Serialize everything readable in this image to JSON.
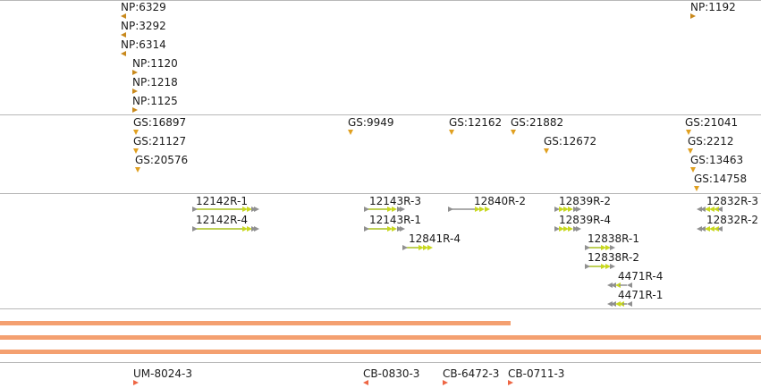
{
  "np_track": {
    "items": [
      {
        "label": "NP:6329",
        "dir": "left"
      },
      {
        "label": "NP:3292",
        "dir": "left"
      },
      {
        "label": "NP:6314",
        "dir": "left"
      },
      {
        "label": "NP:1120",
        "dir": "right"
      },
      {
        "label": "NP:1218",
        "dir": "right"
      },
      {
        "label": "NP:1125",
        "dir": "right"
      },
      {
        "label": "NP:1192",
        "dir": "right"
      }
    ]
  },
  "gs_track": {
    "items": [
      {
        "label": "GS:16897"
      },
      {
        "label": "GS:21127"
      },
      {
        "label": "GS:20576"
      },
      {
        "label": "GS:9949"
      },
      {
        "label": "GS:12162"
      },
      {
        "label": "GS:21882"
      },
      {
        "label": "GS:12672"
      },
      {
        "label": "GS:21041"
      },
      {
        "label": "GS:2212"
      },
      {
        "label": "GS:13463"
      },
      {
        "label": "GS:14758"
      }
    ]
  },
  "r_track": {
    "items": [
      {
        "label": "12142R-1",
        "strand": "forward"
      },
      {
        "label": "12142R-4",
        "strand": "forward"
      },
      {
        "label": "12143R-3",
        "strand": "forward"
      },
      {
        "label": "12143R-1",
        "strand": "forward"
      },
      {
        "label": "12841R-4",
        "strand": "forward"
      },
      {
        "label": "12840R-2",
        "strand": "forward"
      },
      {
        "label": "12839R-2",
        "strand": "forward"
      },
      {
        "label": "12839R-4",
        "strand": "forward"
      },
      {
        "label": "12838R-1",
        "strand": "forward"
      },
      {
        "label": "12838R-2",
        "strand": "forward"
      },
      {
        "label": "4471R-4",
        "strand": "reverse"
      },
      {
        "label": "4471R-1",
        "strand": "reverse"
      },
      {
        "label": "12832R-3",
        "strand": "reverse"
      },
      {
        "label": "12832R-2",
        "strand": "reverse"
      }
    ]
  },
  "coverage_track": {
    "bars": [
      {
        "name": "bar-1"
      },
      {
        "name": "bar-2"
      },
      {
        "name": "bar-3"
      }
    ]
  },
  "cb_track": {
    "items": [
      {
        "label": "UM-8024-3",
        "dir": "right"
      },
      {
        "label": "CB-0830-3",
        "dir": "left"
      },
      {
        "label": "CB-6472-3",
        "dir": "right"
      },
      {
        "label": "CB-0711-3",
        "dir": "right"
      }
    ]
  },
  "colors": {
    "np_marker": "#c8891c",
    "gs_marker": "#e0a020",
    "feature_line": "#a8c020",
    "feature_arrow": "#c8d820",
    "feature_grey": "#909090",
    "coverage_bar": "#f4a070",
    "cb_marker": "#ee6644",
    "separator": "#b8b8b8"
  }
}
